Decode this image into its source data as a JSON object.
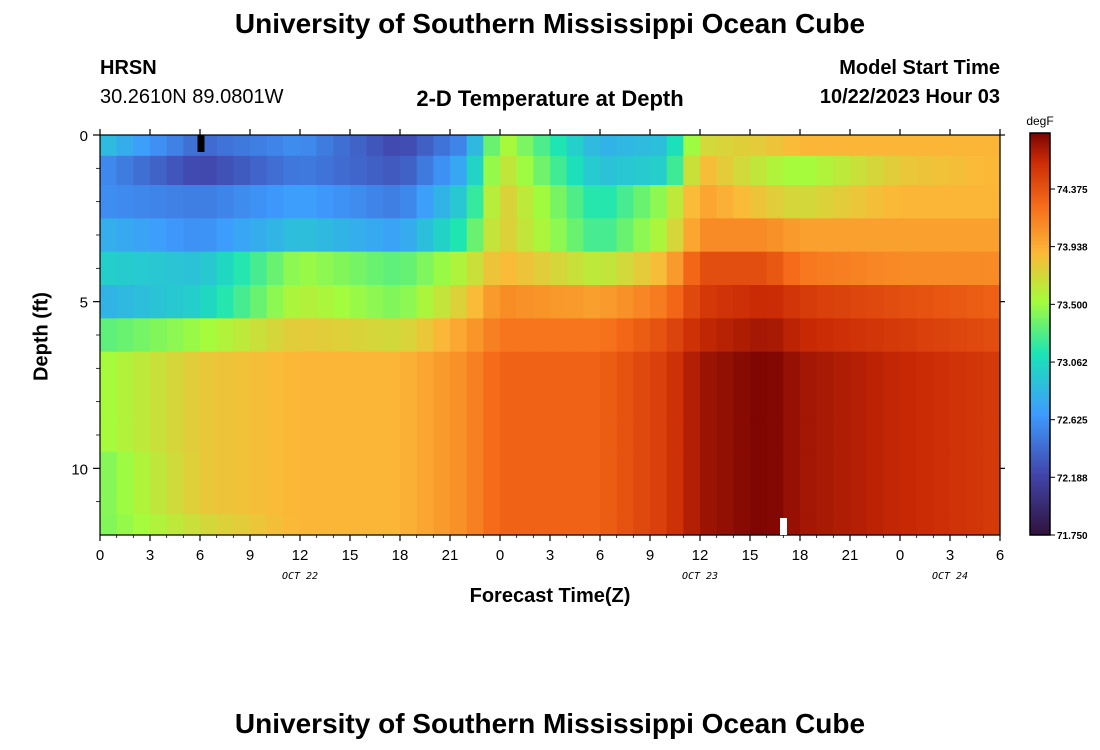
{
  "header": {
    "title": "University of Southern Mississippi Ocean Cube",
    "station": "HRSN",
    "coords": "30.2610N  89.0801W",
    "subtitle": "2-D Temperature at Depth",
    "model_start_label": "Model Start Time",
    "model_start_value": "10/22/2023 Hour 03"
  },
  "footer": {
    "title": "University of Southern Mississippi Ocean Cube"
  },
  "chart_data": {
    "type": "heatmap",
    "title": "2-D Temperature at Depth",
    "xlabel": "Forecast Time(Z)",
    "ylabel": "Depth (ft)",
    "units": "degF",
    "x_hours": [
      0,
      3,
      6,
      9,
      12,
      15,
      18,
      21,
      24,
      27,
      30,
      33,
      36,
      39,
      42,
      45,
      48,
      51,
      54
    ],
    "x_tick_labels": [
      "0",
      "3",
      "6",
      "9",
      "12",
      "15",
      "18",
      "21",
      "0",
      "3",
      "6",
      "9",
      "12",
      "15",
      "18",
      "21",
      "0",
      "3",
      "6"
    ],
    "date_labels": [
      {
        "text": "OCT 22",
        "hour": 12
      },
      {
        "text": "OCT 23",
        "hour": 36
      },
      {
        "text": "OCT 24",
        "hour": 51
      }
    ],
    "y_ticks": [
      0,
      5,
      10
    ],
    "ylim": [
      0,
      12
    ],
    "colorbar": {
      "ticks": [
        "74.375",
        "73.938",
        "73.500",
        "73.062",
        "72.625",
        "72.188",
        "71.750"
      ],
      "range": [
        71.75,
        74.8
      ]
    },
    "layer_depths_ft": [
      0.25,
      1,
      2,
      3,
      4,
      5,
      6,
      7,
      8,
      9,
      10,
      11,
      11.75
    ],
    "anchor_hours": [
      0,
      6,
      12,
      18,
      22,
      24,
      30,
      34,
      36,
      40,
      42,
      48,
      54
    ],
    "temperatures": [
      [
        72.9,
        72.4,
        72.6,
        72.2,
        72.6,
        73.6,
        72.8,
        72.9,
        73.7,
        73.8,
        73.9,
        73.9,
        73.9
      ],
      [
        72.6,
        72.2,
        72.5,
        72.3,
        72.8,
        73.7,
        72.9,
        73.0,
        73.9,
        73.6,
        73.5,
        73.8,
        73.9
      ],
      [
        72.6,
        72.5,
        72.7,
        72.5,
        73.0,
        73.8,
        73.1,
        73.5,
        74.0,
        73.8,
        73.7,
        73.9,
        73.9
      ],
      [
        72.8,
        72.6,
        72.9,
        72.7,
        73.2,
        73.8,
        73.2,
        73.6,
        74.1,
        74.1,
        74.0,
        74.0,
        74.0
      ],
      [
        73.0,
        72.9,
        73.5,
        73.3,
        73.6,
        73.9,
        73.6,
        73.9,
        74.4,
        74.4,
        74.2,
        74.1,
        74.1
      ],
      [
        72.8,
        73.0,
        73.6,
        73.4,
        73.8,
        74.1,
        74.0,
        74.2,
        74.5,
        74.6,
        74.5,
        74.4,
        74.3
      ],
      [
        73.3,
        73.5,
        73.8,
        73.7,
        74.0,
        74.2,
        74.2,
        74.4,
        74.6,
        74.7,
        74.6,
        74.5,
        74.4
      ],
      [
        73.5,
        73.8,
        73.9,
        73.9,
        74.1,
        74.3,
        74.3,
        74.5,
        74.7,
        74.8,
        74.7,
        74.6,
        74.5
      ],
      [
        73.5,
        73.8,
        73.9,
        73.9,
        74.1,
        74.3,
        74.3,
        74.5,
        74.7,
        74.8,
        74.7,
        74.6,
        74.5
      ],
      [
        73.5,
        73.8,
        73.9,
        73.9,
        74.1,
        74.3,
        74.3,
        74.5,
        74.7,
        74.8,
        74.7,
        74.6,
        74.5
      ],
      [
        73.4,
        73.8,
        73.9,
        73.9,
        74.1,
        74.3,
        74.3,
        74.5,
        74.7,
        74.8,
        74.7,
        74.6,
        74.5
      ],
      [
        73.4,
        73.8,
        73.9,
        73.9,
        74.1,
        74.3,
        74.3,
        74.5,
        74.7,
        74.8,
        74.7,
        74.6,
        74.5
      ],
      [
        73.4,
        73.7,
        73.9,
        73.9,
        74.1,
        74.3,
        74.3,
        74.5,
        74.7,
        74.8,
        74.7,
        74.6,
        74.5
      ]
    ]
  }
}
